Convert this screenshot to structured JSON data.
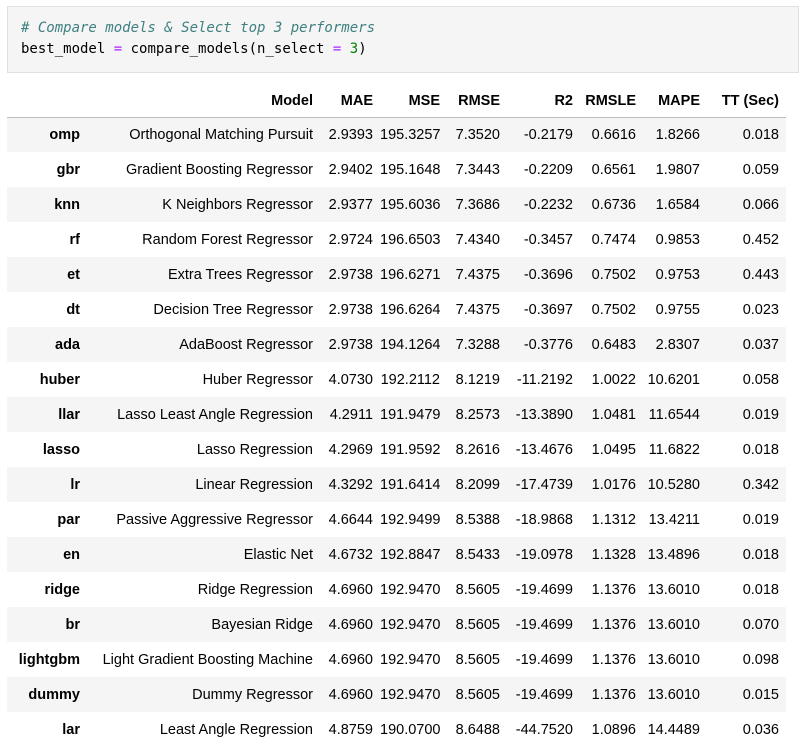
{
  "code": {
    "comment": "# Compare models & Select top 3 performers",
    "line2": {
      "var": "best_model",
      "eq": "=",
      "call": "compare_models(n_select",
      "eq2": "=",
      "num": "3",
      "close": ")"
    }
  },
  "table": {
    "columns": [
      "Model",
      "MAE",
      "MSE",
      "RMSE",
      "R2",
      "RMSLE",
      "MAPE",
      "TT (Sec)"
    ],
    "rows": [
      {
        "id": "omp",
        "cells": [
          "Orthogonal Matching Pursuit",
          "2.9393",
          "195.3257",
          "7.3520",
          "-0.2179",
          "0.6616",
          "1.8266",
          "0.018"
        ]
      },
      {
        "id": "gbr",
        "cells": [
          "Gradient Boosting Regressor",
          "2.9402",
          "195.1648",
          "7.3443",
          "-0.2209",
          "0.6561",
          "1.9807",
          "0.059"
        ]
      },
      {
        "id": "knn",
        "cells": [
          "K Neighbors Regressor",
          "2.9377",
          "195.6036",
          "7.3686",
          "-0.2232",
          "0.6736",
          "1.6584",
          "0.066"
        ]
      },
      {
        "id": "rf",
        "cells": [
          "Random Forest Regressor",
          "2.9724",
          "196.6503",
          "7.4340",
          "-0.3457",
          "0.7474",
          "0.9853",
          "0.452"
        ]
      },
      {
        "id": "et",
        "cells": [
          "Extra Trees Regressor",
          "2.9738",
          "196.6271",
          "7.4375",
          "-0.3696",
          "0.7502",
          "0.9753",
          "0.443"
        ]
      },
      {
        "id": "dt",
        "cells": [
          "Decision Tree Regressor",
          "2.9738",
          "196.6264",
          "7.4375",
          "-0.3697",
          "0.7502",
          "0.9755",
          "0.023"
        ]
      },
      {
        "id": "ada",
        "cells": [
          "AdaBoost Regressor",
          "2.9738",
          "194.1264",
          "7.3288",
          "-0.3776",
          "0.6483",
          "2.8307",
          "0.037"
        ]
      },
      {
        "id": "huber",
        "cells": [
          "Huber Regressor",
          "4.0730",
          "192.2112",
          "8.1219",
          "-11.2192",
          "1.0022",
          "10.6201",
          "0.058"
        ]
      },
      {
        "id": "llar",
        "cells": [
          "Lasso Least Angle Regression",
          "4.2911",
          "191.9479",
          "8.2573",
          "-13.3890",
          "1.0481",
          "11.6544",
          "0.019"
        ]
      },
      {
        "id": "lasso",
        "cells": [
          "Lasso Regression",
          "4.2969",
          "191.9592",
          "8.2616",
          "-13.4676",
          "1.0495",
          "11.6822",
          "0.018"
        ]
      },
      {
        "id": "lr",
        "cells": [
          "Linear Regression",
          "4.3292",
          "191.6414",
          "8.2099",
          "-17.4739",
          "1.0176",
          "10.5280",
          "0.342"
        ]
      },
      {
        "id": "par",
        "cells": [
          "Passive Aggressive Regressor",
          "4.6644",
          "192.9499",
          "8.5388",
          "-18.9868",
          "1.1312",
          "13.4211",
          "0.019"
        ]
      },
      {
        "id": "en",
        "cells": [
          "Elastic Net",
          "4.6732",
          "192.8847",
          "8.5433",
          "-19.0978",
          "1.1328",
          "13.4896",
          "0.018"
        ]
      },
      {
        "id": "ridge",
        "cells": [
          "Ridge Regression",
          "4.6960",
          "192.9470",
          "8.5605",
          "-19.4699",
          "1.1376",
          "13.6010",
          "0.018"
        ]
      },
      {
        "id": "br",
        "cells": [
          "Bayesian Ridge",
          "4.6960",
          "192.9470",
          "8.5605",
          "-19.4699",
          "1.1376",
          "13.6010",
          "0.070"
        ]
      },
      {
        "id": "lightgbm",
        "cells": [
          "Light Gradient Boosting Machine",
          "4.6960",
          "192.9470",
          "8.5605",
          "-19.4699",
          "1.1376",
          "13.6010",
          "0.098"
        ]
      },
      {
        "id": "dummy",
        "cells": [
          "Dummy Regressor",
          "4.6960",
          "192.9470",
          "8.5605",
          "-19.4699",
          "1.1376",
          "13.6010",
          "0.015"
        ]
      },
      {
        "id": "lar",
        "cells": [
          "Least Angle Regression",
          "4.8759",
          "190.0700",
          "8.6488",
          "-44.7520",
          "1.0896",
          "14.4489",
          "0.036"
        ]
      }
    ]
  }
}
